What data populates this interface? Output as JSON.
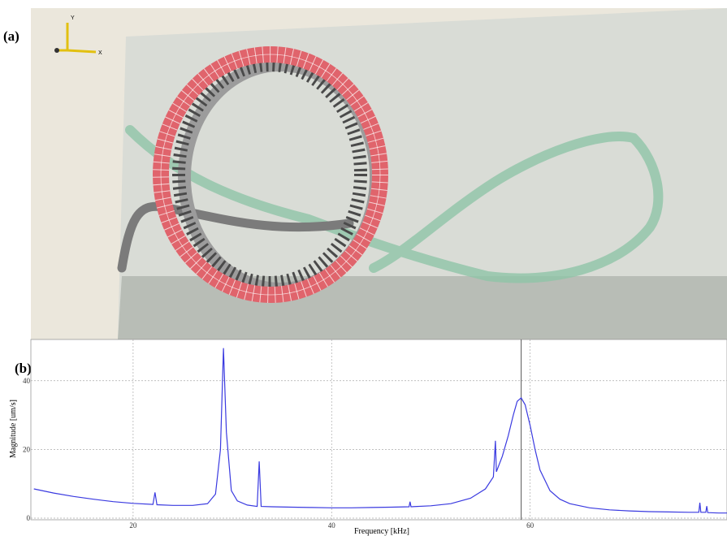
{
  "panel_a": {
    "label": "(a)",
    "triad": {
      "y_label": "Y",
      "x_label": "X"
    }
  },
  "chart_data": {
    "type": "line",
    "panel_label": "(b)",
    "xlabel": "Frequency  [kHz]",
    "ylabel": "Magnitude [um/s]",
    "x": [
      10,
      12,
      14,
      16,
      18,
      20,
      22,
      22.2,
      22.4,
      24,
      26,
      27.5,
      28.3,
      28.8,
      29.1,
      29.4,
      29.9,
      30.5,
      31.5,
      32.5,
      32.7,
      32.9,
      34,
      36,
      38,
      40,
      42,
      44,
      46,
      47.8,
      47.9,
      48.0,
      50,
      52,
      54,
      55.5,
      56.3,
      56.5,
      56.6,
      57.2,
      57.8,
      58.3,
      58.7,
      59.1,
      59.5,
      60,
      60.5,
      61,
      62,
      63,
      64,
      66,
      68,
      70,
      72,
      74,
      76,
      77,
      77.1,
      77.2,
      77.7,
      77.8,
      77.9,
      79,
      80
    ],
    "series": [
      {
        "color": "#3a3ae0",
        "values": [
          8.5,
          7.3,
          6.3,
          5.5,
          4.8,
          4.3,
          4.0,
          7.5,
          3.9,
          3.7,
          3.7,
          4.2,
          7,
          20,
          49.5,
          25,
          8,
          5,
          3.8,
          3.4,
          16.5,
          3.4,
          3.3,
          3.2,
          3.1,
          3.0,
          3.0,
          3.1,
          3.2,
          3.3,
          4.8,
          3.3,
          3.6,
          4.2,
          5.8,
          8.5,
          12,
          22.5,
          13.5,
          18,
          24,
          30,
          34,
          35,
          33,
          27,
          20,
          14,
          8,
          5.5,
          4.2,
          3,
          2.4,
          2.1,
          1.9,
          1.8,
          1.7,
          1.7,
          4.5,
          1.7,
          1.7,
          3.5,
          1.6,
          1.5,
          1.5
        ]
      }
    ],
    "cursor": 59.1,
    "xlim": [
      10,
      80
    ],
    "ylim": [
      0,
      52
    ],
    "xticks": [
      20,
      40,
      60
    ],
    "yticks": [
      0,
      20,
      40
    ],
    "grid": true
  }
}
